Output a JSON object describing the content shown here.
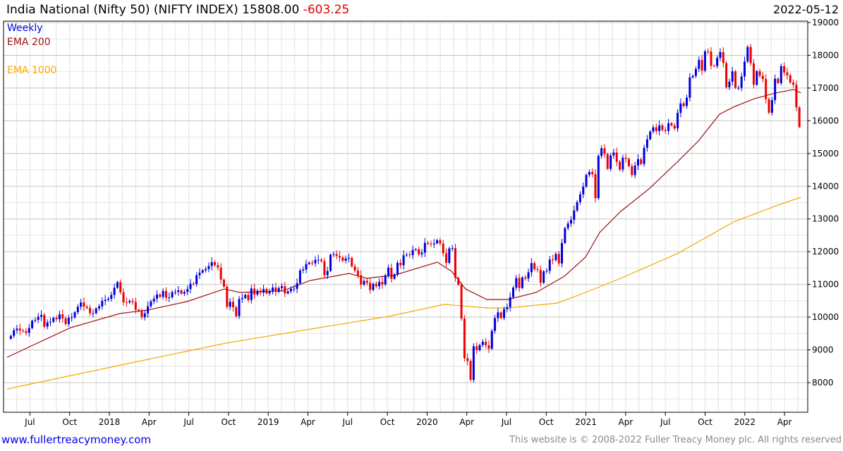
{
  "header": {
    "title": "India National (Nifty 50) (NIFTY INDEX) 15808.00",
    "change": "-603.25",
    "date": "2022-05-12"
  },
  "legend": {
    "period": "Weekly",
    "ema200": "EMA 200",
    "ema1000": "EMA 1000"
  },
  "footer": {
    "link": "www.fullertreacymoney.com",
    "copyright": "This website is © 2008-2022 Fuller Treacy Money plc. All rights reserved"
  },
  "colors": {
    "up": "#0000dd",
    "down": "#ee0000",
    "ema200": "#a01010",
    "ema1000": "#f5a800",
    "change": "#e00000"
  },
  "chart_data": {
    "type": "candlestick",
    "title": "India National (Nifty 50) (NIFTY INDEX)",
    "period": "Weekly",
    "ylim": [
      7100,
      19040
    ],
    "xlim": [
      2017.36,
      2022.42
    ],
    "y_ticks": [
      8000,
      9000,
      10000,
      11000,
      12000,
      13000,
      14000,
      15000,
      16000,
      17000,
      18000,
      19000
    ],
    "x_ticks": [
      {
        "label": "Jul",
        "year": 2017.5
      },
      {
        "label": "Oct",
        "year": 2017.75
      },
      {
        "label": "2018",
        "year": 2018.0
      },
      {
        "label": "Apr",
        "year": 2018.25
      },
      {
        "label": "Jul",
        "year": 2018.5
      },
      {
        "label": "Oct",
        "year": 2018.75
      },
      {
        "label": "2019",
        "year": 2019.0
      },
      {
        "label": "Apr",
        "year": 2019.25
      },
      {
        "label": "Jul",
        "year": 2019.5
      },
      {
        "label": "Oct",
        "year": 2019.75
      },
      {
        "label": "2020",
        "year": 2020.0
      },
      {
        "label": "Apr",
        "year": 2020.25
      },
      {
        "label": "Jul",
        "year": 2020.5
      },
      {
        "label": "Oct",
        "year": 2020.75
      },
      {
        "label": "2021",
        "year": 2021.0
      },
      {
        "label": "Apr",
        "year": 2021.25
      },
      {
        "label": "Jul",
        "year": 2021.5
      },
      {
        "label": "Oct",
        "year": 2021.75
      },
      {
        "label": "2022",
        "year": 2022.0
      },
      {
        "label": "Apr",
        "year": 2022.25
      }
    ],
    "start_year": 2017.38,
    "weekly_closes": [
      9430,
      9600,
      9650,
      9590,
      9575,
      9520,
      9665,
      9890,
      9915,
      10015,
      10065,
      9710,
      9840,
      9855,
      9975,
      9935,
      10085,
      9965,
      9790,
      9980,
      9990,
      10150,
      10320,
      10450,
      10320,
      10285,
      10120,
      10120,
      10265,
      10330,
      10495,
      10530,
      10560,
      10680,
      10895,
      11070,
      10760,
      10455,
      10450,
      10490,
      10460,
      10225,
      10195,
      9998,
      10115,
      10330,
      10480,
      10565,
      10690,
      10620,
      10800,
      10595,
      10605,
      10765,
      10770,
      10820,
      10715,
      10770,
      10860,
      11020,
      11010,
      11280,
      11360,
      11430,
      11470,
      11560,
      11680,
      11590,
      11515,
      11145,
      10930,
      10315,
      10470,
      10300,
      10030,
      10555,
      10585,
      10680,
      10525,
      10875,
      10690,
      10805,
      10750,
      10860,
      10725,
      10795,
      10905,
      10780,
      10890,
      10945,
      10725,
      10790,
      10865,
      10865,
      11035,
      11425,
      11455,
      11625,
      11665,
      11645,
      11750,
      11755,
      11710,
      11280,
      11410,
      11905,
      11925,
      11870,
      11825,
      11725,
      11790,
      11810,
      11550,
      11420,
      11280,
      10995,
      11110,
      11050,
      10830,
      11020,
      10945,
      11075,
      11000,
      11275,
      11510,
      11175,
      11305,
      11660,
      11585,
      11890,
      11910,
      11895,
      12055,
      12075,
      11920,
      11970,
      12270,
      12245,
      12225,
      12255,
      12350,
      12250,
      11950,
      11660,
      12100,
      12110,
      11200,
      10990,
      9955,
      8745,
      8660,
      8085,
      9110,
      8990,
      9150,
      9250,
      9140,
      9040,
      9580,
      9970,
      10145,
      9975,
      10245,
      10305,
      10610,
      10900,
      11195,
      10890,
      11215,
      11180,
      11370,
      11650,
      11465,
      11445,
      11050,
      11400,
      11415,
      11760,
      11745,
      11930,
      11640,
      12265,
      12720,
      12860,
      12970,
      13260,
      13515,
      13750,
      13985,
      14345,
      14435,
      14370,
      13635,
      14925,
      15160,
      14985,
      14530,
      14940,
      15030,
      14745,
      14510,
      14870,
      14835,
      14615,
      14340,
      14630,
      14825,
      14680,
      15175,
      15435,
      15670,
      15800,
      15685,
      15860,
      15720,
      15690,
      15925,
      15855,
      15765,
      16240,
      16530,
      16450,
      16705,
      17325,
      17370,
      17585,
      17855,
      17530,
      18120,
      18115,
      17680,
      17670,
      17920,
      18100,
      17765,
      17025,
      17195,
      17510,
      17005,
      17005,
      17355,
      17810,
      18255,
      17755,
      17100,
      17515,
      17375,
      17275,
      16660,
      16245,
      16630,
      17285,
      17150,
      17670,
      17475,
      17390,
      17170,
      17100,
      16410,
      15808
    ],
    "series": [
      {
        "name": "EMA 200",
        "points": [
          [
            2017.356,
            8774
          ],
          [
            2017.756,
            9678
          ],
          [
            2018.067,
            10110
          ],
          [
            2018.244,
            10220
          ],
          [
            2018.488,
            10475
          ],
          [
            2018.724,
            10860
          ],
          [
            2018.821,
            10755
          ],
          [
            2019.088,
            10800
          ],
          [
            2019.266,
            11120
          ],
          [
            2019.51,
            11335
          ],
          [
            2019.62,
            11185
          ],
          [
            2019.8,
            11290
          ],
          [
            2020.065,
            11680
          ],
          [
            2020.154,
            11400
          ],
          [
            2020.242,
            10860
          ],
          [
            2020.376,
            10540
          ],
          [
            2020.509,
            10540
          ],
          [
            2020.687,
            10755
          ],
          [
            2020.864,
            11250
          ],
          [
            2020.997,
            11830
          ],
          [
            2021.086,
            12585
          ],
          [
            2021.219,
            13230
          ],
          [
            2021.397,
            13920
          ],
          [
            2021.575,
            14740
          ],
          [
            2021.708,
            15380
          ],
          [
            2021.841,
            16200
          ],
          [
            2021.93,
            16420
          ],
          [
            2022.063,
            16680
          ],
          [
            2022.196,
            16850
          ],
          [
            2022.307,
            16955
          ],
          [
            2022.352,
            16850
          ]
        ]
      },
      {
        "name": "EMA 1000",
        "points": [
          [
            2017.356,
            7806
          ],
          [
            2017.756,
            8215
          ],
          [
            2018.2,
            8667
          ],
          [
            2018.733,
            9205
          ],
          [
            2019.266,
            9635
          ],
          [
            2019.755,
            10020
          ],
          [
            2020.11,
            10390
          ],
          [
            2020.376,
            10280
          ],
          [
            2020.509,
            10280
          ],
          [
            2020.82,
            10430
          ],
          [
            2020.997,
            10755
          ],
          [
            2021.219,
            11185
          ],
          [
            2021.575,
            11940
          ],
          [
            2021.93,
            12910
          ],
          [
            2022.196,
            13400
          ],
          [
            2022.352,
            13660
          ]
        ]
      }
    ]
  }
}
